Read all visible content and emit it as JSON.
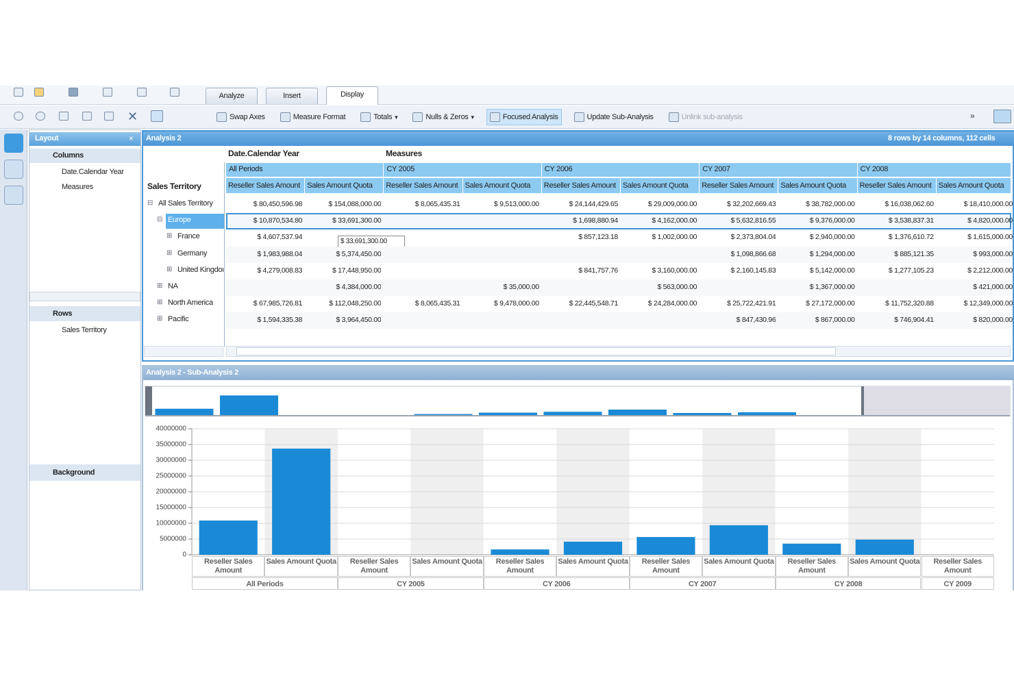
{
  "toolbar": {
    "tabs": [
      "Analyze",
      "Insert",
      "Display"
    ],
    "active_tab": 2,
    "buttons": [
      {
        "label": "Swap Axes"
      },
      {
        "label": "Measure Format"
      },
      {
        "label": "Totals",
        "dropdown": true
      },
      {
        "label": "Nulls & Zeros",
        "dropdown": true
      },
      {
        "label": "Focused Analysis",
        "state": "active"
      },
      {
        "label": "Update Sub-Analysis"
      },
      {
        "label": "Unlink sub-analysis",
        "state": "disabled"
      }
    ]
  },
  "layout_panel": {
    "title": "Layout",
    "columns": {
      "title": "Columns",
      "items": [
        "Date.Calendar Year",
        "Measures"
      ]
    },
    "rows": {
      "title": "Rows",
      "items": [
        "Sales Territory"
      ]
    },
    "background": {
      "title": "Background"
    }
  },
  "analysis": {
    "title": "Analysis 2",
    "info": "8 rows by 14 columns, 112 cells",
    "column_dimension": "Date.Calendar Year",
    "measures_title": "Measures",
    "row_dimension": "Sales Territory",
    "periods": [
      "All Periods",
      "CY 2005",
      "CY 2006",
      "CY 2007",
      "CY 2008"
    ],
    "measures": [
      "Reseller Sales Amount",
      "Sales Amount Quota"
    ],
    "tooltip": "$ 33,691,300.00",
    "rows": [
      {
        "label": "All Sales Territory",
        "cells": [
          "$ 80,450,596.98",
          "$ 154,088,000.00",
          "$ 8,065,435.31",
          "$ 9,513,000.00",
          "$ 24,144,429.65",
          "$ 29,009,000.00",
          "$ 32,202,669.43",
          "$ 38,782,000.00",
          "$ 16,038,062.60",
          "$ 18,410,000.00"
        ],
        "children": [
          {
            "label": "Europe",
            "selected": true,
            "cells": [
              "$ 10,870,534.80",
              "$ 33,691,300.00",
              null,
              null,
              "$ 1,698,880.94",
              "$ 4,162,000.00",
              "$ 5,632,816.55",
              "$ 9,376,000.00",
              "$ 3,538,837.31",
              "$ 4,820,000.00"
            ],
            "children": [
              {
                "label": "France",
                "cells": [
                  "$ 4,607,537.94",
                  null,
                  null,
                  null,
                  "$ 857,123.18",
                  "$ 1,002,000.00",
                  "$ 2,373,804.04",
                  "$ 2,940,000.00",
                  "$ 1,376,610.72",
                  "$ 1,615,000.00"
                ]
              },
              {
                "label": "Germany",
                "cells": [
                  "$ 1,983,988.04",
                  "$ 5,374,450.00",
                  null,
                  null,
                  null,
                  null,
                  "$ 1,098,866.68",
                  "$ 1,294,000.00",
                  "$ 885,121.35",
                  "$ 993,000.00"
                ]
              },
              {
                "label": "United Kingdom",
                "cells": [
                  "$ 4,279,008.83",
                  "$ 17,448,950.00",
                  null,
                  null,
                  "$ 841,757.76",
                  "$ 3,160,000.00",
                  "$ 2,160,145.83",
                  "$ 5,142,000.00",
                  "$ 1,277,105.23",
                  "$ 2,212,000.00"
                ]
              }
            ]
          },
          {
            "label": "NA",
            "cells": [
              null,
              "$ 4,384,000.00",
              null,
              "$ 35,000.00",
              null,
              "$ 563,000.00",
              null,
              "$ 1,367,000.00",
              null,
              "$ 421,000.00"
            ]
          },
          {
            "label": "North America",
            "cells": [
              "$ 67,985,726.81",
              "$ 112,048,250.00",
              "$ 8,065,435.31",
              "$ 9,478,000.00",
              "$ 22,445,548.71",
              "$ 24,284,000.00",
              "$ 25,722,421.91",
              "$ 27,172,000.00",
              "$ 11,752,320.88",
              "$ 12,349,000.00"
            ]
          },
          {
            "label": "Pacific",
            "cells": [
              "$ 1,594,335.38",
              "$ 3,964,450.00",
              null,
              null,
              null,
              null,
              "$ 847,430.96",
              "$ 867,000.00",
              "$ 746,904.41",
              "$ 820,000.00"
            ]
          }
        ]
      }
    ]
  },
  "sub_analysis": {
    "title": "Analysis 2 - Sub-Analysis 2"
  },
  "chart_data": {
    "type": "bar",
    "groups": [
      "All Periods",
      "CY 2005",
      "CY 2006",
      "CY 2007",
      "CY 2008",
      "CY 2009"
    ],
    "categories": [
      "Reseller Sales Amount",
      "Sales Amount Quota",
      "Reseller Sales Amount",
      "Sales Amount Quota",
      "Reseller Sales Amount",
      "Sales Amount Quota",
      "Reseller Sales Amount",
      "Sales Amount Quota",
      "Reseller Sales Amount",
      "Sales Amount Quota",
      "Reseller Sales Amount"
    ],
    "values": [
      10870534.8,
      33691300,
      null,
      null,
      1698880.94,
      4162000,
      5632816.55,
      9376000,
      3538837.31,
      4820000,
      null
    ],
    "color": "#1a8ad6",
    "ylim": [
      0,
      40000000
    ],
    "yticks": [
      0,
      5000000,
      10000000,
      15000000,
      20000000,
      25000000,
      30000000,
      35000000,
      40000000
    ],
    "grid": true
  }
}
